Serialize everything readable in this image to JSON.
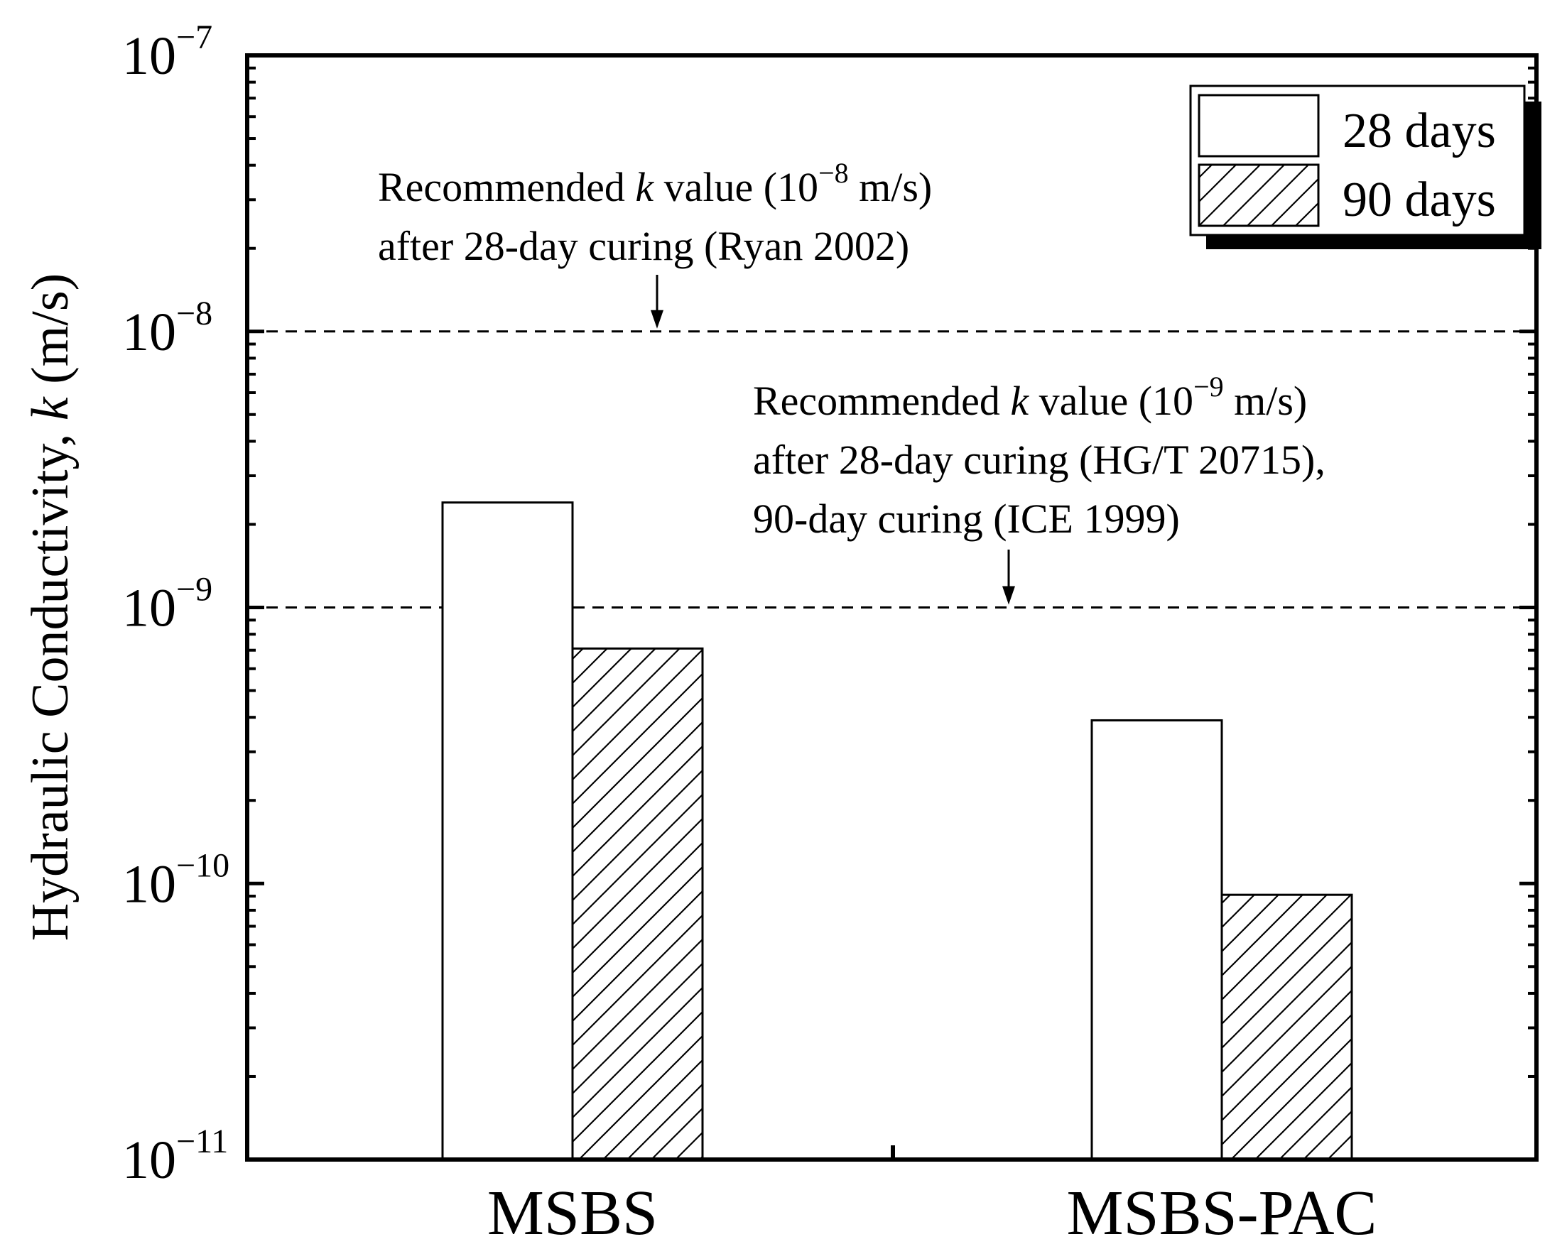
{
  "chart_data": {
    "type": "bar",
    "scale": "log",
    "ylabel": "Hydraulic Conductivity, ",
    "ylabel_symbol": "k",
    "ylabel_unit": " (m/s)",
    "ylim": [
      1e-11,
      1e-07
    ],
    "categories": [
      "MSBS",
      "MSBS-PAC"
    ],
    "series": [
      {
        "name": "28 days",
        "fill": "none",
        "values": [
          2.4e-09,
          3.9e-10
        ]
      },
      {
        "name": "90 days",
        "fill": "hatch",
        "values": [
          7.1e-10,
          9.1e-11
        ]
      }
    ],
    "y_ticks": [
      {
        "value": 1e-11,
        "base": "10",
        "exp": "−11"
      },
      {
        "value": 1e-10,
        "base": "10",
        "exp": "−10"
      },
      {
        "value": 1e-09,
        "base": "10",
        "exp": "−9"
      },
      {
        "value": 1e-08,
        "base": "10",
        "exp": "−8"
      },
      {
        "value": 1e-07,
        "base": "10",
        "exp": "−7"
      }
    ],
    "reference_lines": [
      {
        "value": 1e-08,
        "label_line1_pre": "Recommended ",
        "label_line1_k": "k",
        "label_line1_mid": " value (10",
        "label_line1_exp": "−8",
        "label_line1_post": " m/s)",
        "label_lines": [
          "after 28-day curing  (Ryan 2002)"
        ]
      },
      {
        "value": 1e-09,
        "label_line1_pre": "Recommended ",
        "label_line1_k": "k",
        "label_line1_mid": " value (10",
        "label_line1_exp": "−9",
        "label_line1_post": " m/s)",
        "label_lines": [
          "after 28-day curing (HG/T 20715),",
          "90-day curing (ICE 1999)"
        ]
      }
    ],
    "legend": {
      "position": "top-right",
      "items": [
        "28 days",
        "90 days"
      ]
    }
  },
  "colors": {
    "ink": "#000000",
    "background": "#ffffff"
  }
}
